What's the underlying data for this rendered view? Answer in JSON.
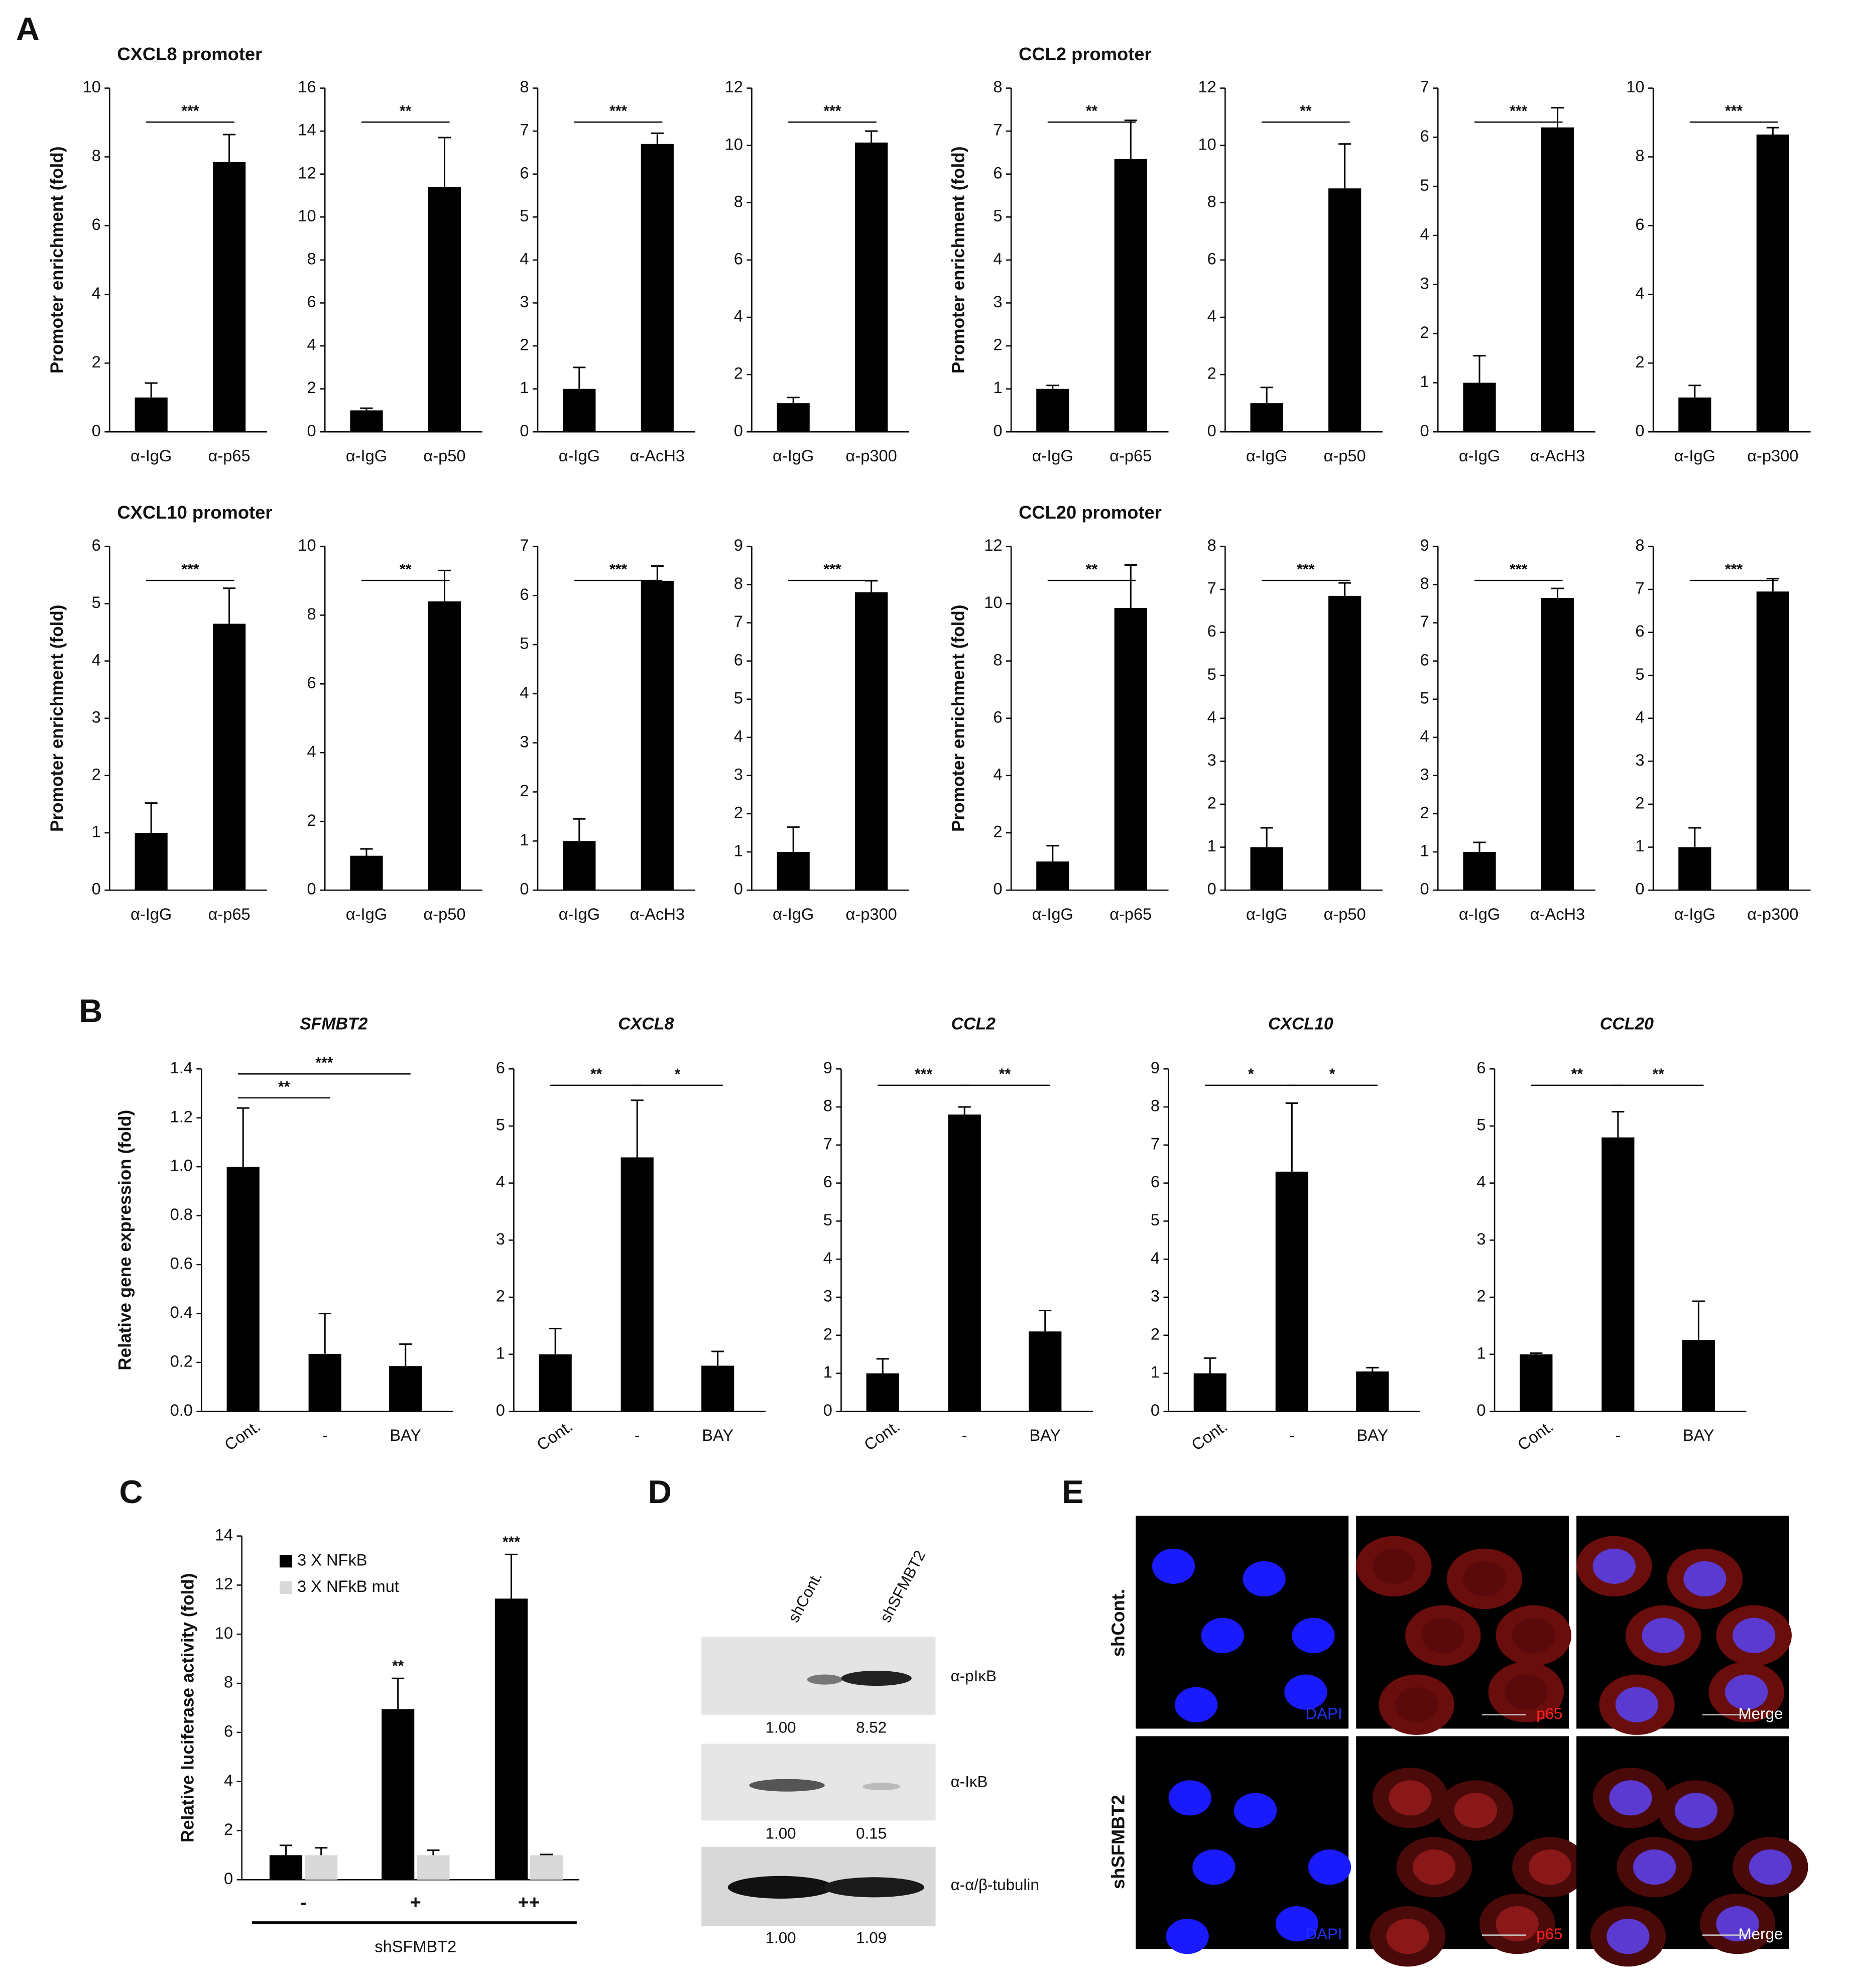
{
  "panel_labels": [
    "A",
    "B",
    "C",
    "D",
    "E"
  ],
  "chart_data": [
    {
      "type": "bar",
      "title": "CXCL8 promoter",
      "ylabel": "Promoter enrichment  (fold)",
      "categories": [
        "α-IgG",
        "α-p65"
      ],
      "values": [
        1,
        7.85
      ],
      "errors": [
        0.42,
        0.8
      ],
      "ylim": [
        0,
        10
      ],
      "yticks": [
        0,
        2,
        4,
        6,
        8,
        10
      ],
      "annotations": [
        "***"
      ]
    },
    {
      "type": "bar",
      "categories": [
        "α-IgG",
        "α-p50"
      ],
      "values": [
        1,
        11.4
      ],
      "errors": [
        0.1,
        2.3
      ],
      "ylim": [
        0,
        16
      ],
      "yticks": [
        0,
        2,
        4,
        6,
        8,
        10,
        12,
        14,
        16
      ],
      "annotations": [
        "**"
      ]
    },
    {
      "type": "bar",
      "categories": [
        "α-IgG",
        "α-AcH3"
      ],
      "values": [
        1,
        6.7
      ],
      "errors": [
        0.5,
        0.25
      ],
      "ylim": [
        0,
        8
      ],
      "yticks": [
        0,
        1,
        2,
        3,
        4,
        5,
        6,
        7,
        8
      ],
      "annotations": [
        "***"
      ]
    },
    {
      "type": "bar",
      "categories": [
        "α-IgG",
        "α-p300"
      ],
      "values": [
        1,
        10.1
      ],
      "errors": [
        0.2,
        0.4
      ],
      "ylim": [
        0,
        12
      ],
      "yticks": [
        0,
        2,
        4,
        6,
        8,
        10,
        12
      ],
      "annotations": [
        "***"
      ]
    },
    {
      "type": "bar",
      "title": "CCL2 promoter",
      "ylabel": "Promoter enrichment  (fold)",
      "categories": [
        "α-IgG",
        "α-p65"
      ],
      "values": [
        1,
        6.35
      ],
      "errors": [
        0.08,
        0.9
      ],
      "ylim": [
        0,
        8
      ],
      "yticks": [
        0,
        1,
        2,
        3,
        4,
        5,
        6,
        7,
        8
      ],
      "annotations": [
        "**"
      ]
    },
    {
      "type": "bar",
      "categories": [
        "α-IgG",
        "α-p50"
      ],
      "values": [
        1,
        8.5
      ],
      "errors": [
        0.55,
        1.55
      ],
      "ylim": [
        0,
        12
      ],
      "yticks": [
        0,
        2,
        4,
        6,
        8,
        10,
        12
      ],
      "annotations": [
        "**"
      ]
    },
    {
      "type": "bar",
      "categories": [
        "α-IgG",
        "α-AcH3"
      ],
      "values": [
        1,
        6.2
      ],
      "errors": [
        0.55,
        0.4
      ],
      "ylim": [
        0,
        7
      ],
      "yticks": [
        0,
        1,
        2,
        3,
        4,
        5,
        6,
        7
      ],
      "annotations": [
        "***"
      ]
    },
    {
      "type": "bar",
      "categories": [
        "α-IgG",
        "α-p300"
      ],
      "values": [
        1,
        8.65
      ],
      "errors": [
        0.35,
        0.2
      ],
      "ylim": [
        0,
        10
      ],
      "yticks": [
        0,
        2,
        4,
        6,
        8,
        10
      ],
      "annotations": [
        "***"
      ]
    },
    {
      "type": "bar",
      "title": "CXCL10 promoter",
      "ylabel": "Promoter enrichment  (fold)",
      "categories": [
        "α-IgG",
        "α-p65"
      ],
      "values": [
        1,
        4.65
      ],
      "errors": [
        0.52,
        0.62
      ],
      "ylim": [
        0,
        6
      ],
      "yticks": [
        0,
        1,
        2,
        3,
        4,
        5,
        6
      ],
      "annotations": [
        "***"
      ]
    },
    {
      "type": "bar",
      "categories": [
        "α-IgG",
        "α-p50"
      ],
      "values": [
        1,
        8.4
      ],
      "errors": [
        0.2,
        0.9
      ],
      "ylim": [
        0,
        10
      ],
      "yticks": [
        0,
        2,
        4,
        6,
        8,
        10
      ],
      "annotations": [
        "**"
      ]
    },
    {
      "type": "bar",
      "categories": [
        "α-IgG",
        "α-AcH3"
      ],
      "values": [
        1,
        6.3
      ],
      "errors": [
        0.45,
        0.3
      ],
      "ylim": [
        0,
        7
      ],
      "yticks": [
        0,
        1,
        2,
        3,
        4,
        5,
        6,
        7
      ],
      "annotations": [
        "***"
      ]
    },
    {
      "type": "bar",
      "categories": [
        "α-IgG",
        "α-p300"
      ],
      "values": [
        1,
        7.8
      ],
      "errors": [
        0.65,
        0.3
      ],
      "ylim": [
        0,
        9
      ],
      "yticks": [
        0,
        1,
        2,
        3,
        4,
        5,
        6,
        7,
        8,
        9
      ],
      "annotations": [
        "***"
      ]
    },
    {
      "type": "bar",
      "title": "CCL20 promoter",
      "ylabel": "Promoter enrichment  (fold)",
      "categories": [
        "α-IgG",
        "α-p65"
      ],
      "values": [
        1,
        9.85
      ],
      "errors": [
        0.55,
        1.5
      ],
      "ylim": [
        0,
        12
      ],
      "yticks": [
        0,
        2,
        4,
        6,
        8,
        10,
        12
      ],
      "annotations": [
        "**"
      ]
    },
    {
      "type": "bar",
      "categories": [
        "α-IgG",
        "α-p50"
      ],
      "values": [
        1,
        6.85
      ],
      "errors": [
        0.45,
        0.3
      ],
      "ylim": [
        0,
        8
      ],
      "yticks": [
        0,
        1,
        2,
        3,
        4,
        5,
        6,
        7,
        8
      ],
      "annotations": [
        "***"
      ]
    },
    {
      "type": "bar",
      "categories": [
        "α-IgG",
        "α-AcH3"
      ],
      "values": [
        1,
        7.65
      ],
      "errors": [
        0.25,
        0.25
      ],
      "ylim": [
        0,
        9
      ],
      "yticks": [
        0,
        1,
        2,
        3,
        4,
        5,
        6,
        7,
        8,
        9
      ],
      "annotations": [
        "***"
      ]
    },
    {
      "type": "bar",
      "categories": [
        "α-IgG",
        "α-p300"
      ],
      "values": [
        1,
        6.95
      ],
      "errors": [
        0.45,
        0.3
      ],
      "ylim": [
        0,
        8
      ],
      "yticks": [
        0,
        1,
        2,
        3,
        4,
        5,
        6,
        7,
        8
      ],
      "annotations": [
        "***"
      ]
    },
    {
      "type": "bar",
      "title": "SFMBT2",
      "ylabel": "Relative gene expression (fold)",
      "categories": [
        "Cont.",
        "-",
        "BAY"
      ],
      "values": [
        1.0,
        0.235,
        0.185
      ],
      "errors": [
        0.24,
        0.165,
        0.09
      ],
      "ylim": [
        0,
        1.4
      ],
      "yticks": [
        {
          "value": 0,
          "label": "0.0"
        },
        0.2,
        0.4,
        0.6,
        0.8,
        {
          "value": 1,
          "label": "1.0"
        },
        1.2,
        1.4
      ],
      "annotations": [
        "**",
        "***"
      ]
    },
    {
      "type": "bar",
      "title": "CXCL8",
      "categories": [
        "Cont.",
        "-",
        "BAY"
      ],
      "values": [
        1,
        4.45,
        0.8
      ],
      "errors": [
        0.45,
        1.0,
        0.25
      ],
      "ylim": [
        0,
        6
      ],
      "yticks": [
        0,
        1,
        2,
        3,
        4,
        5,
        6
      ],
      "annotations": [
        "**",
        "*"
      ]
    },
    {
      "type": "bar",
      "title": "CCL2",
      "categories": [
        "Cont.",
        "-",
        "BAY"
      ],
      "values": [
        1,
        7.8,
        2.1
      ],
      "errors": [
        0.38,
        0.2,
        0.55
      ],
      "ylim": [
        0,
        9
      ],
      "yticks": [
        0,
        1,
        2,
        3,
        4,
        5,
        6,
        7,
        8,
        9
      ],
      "annotations": [
        "***",
        "**"
      ]
    },
    {
      "type": "bar",
      "title": "CXCL10",
      "categories": [
        "Cont.",
        "-",
        "BAY"
      ],
      "values": [
        1,
        6.3,
        1.05
      ],
      "errors": [
        0.4,
        1.8,
        0.1
      ],
      "ylim": [
        0,
        9
      ],
      "yticks": [
        0,
        1,
        2,
        3,
        4,
        5,
        6,
        7,
        8,
        9
      ],
      "annotations": [
        "*",
        "*"
      ]
    },
    {
      "type": "bar",
      "title": "CCL20",
      "categories": [
        "Cont.",
        "-",
        "BAY"
      ],
      "values": [
        1,
        4.8,
        1.25
      ],
      "errors": [
        0.02,
        0.45,
        0.68
      ],
      "ylim": [
        0,
        6
      ],
      "yticks": [
        0,
        1,
        2,
        3,
        4,
        5,
        6
      ],
      "annotations": [
        "**",
        "**"
      ]
    },
    {
      "type": "grouped-bar",
      "ylabel": "Relative luciferase activity (fold)",
      "xlabel": "shSFMBT2",
      "categories": [
        "-",
        "+",
        "++"
      ],
      "series": [
        {
          "name": "3 X NFkB",
          "color": "#000000",
          "values": [
            1,
            6.95,
            11.45
          ],
          "errors": [
            0.4,
            1.25,
            1.8
          ]
        },
        {
          "name": "3 X NFkB mut",
          "color": "#d9d9d9",
          "values": [
            1,
            1,
            1
          ],
          "errors": [
            0.3,
            0.2,
            0.03
          ]
        }
      ],
      "ylim": [
        0,
        14
      ],
      "yticks": [
        0,
        2,
        4,
        6,
        8,
        10,
        12,
        14
      ],
      "annotations": [
        "**",
        "***"
      ]
    }
  ],
  "blot": {
    "columns": [
      "shCont.",
      "shSFMBT2"
    ],
    "rows": [
      {
        "label": "α-pIκB",
        "values": [
          "1.00",
          "8.52"
        ]
      },
      {
        "label": "α-IκB",
        "values": [
          "1.00",
          "0.15"
        ]
      },
      {
        "label": "α-α/β-tubulin",
        "values": [
          "1.00",
          "1.09"
        ]
      }
    ]
  },
  "images": {
    "rows": [
      "shCont.",
      "shSFMBT2"
    ],
    "channels": [
      "DAPI",
      "p65",
      "Merge"
    ]
  }
}
